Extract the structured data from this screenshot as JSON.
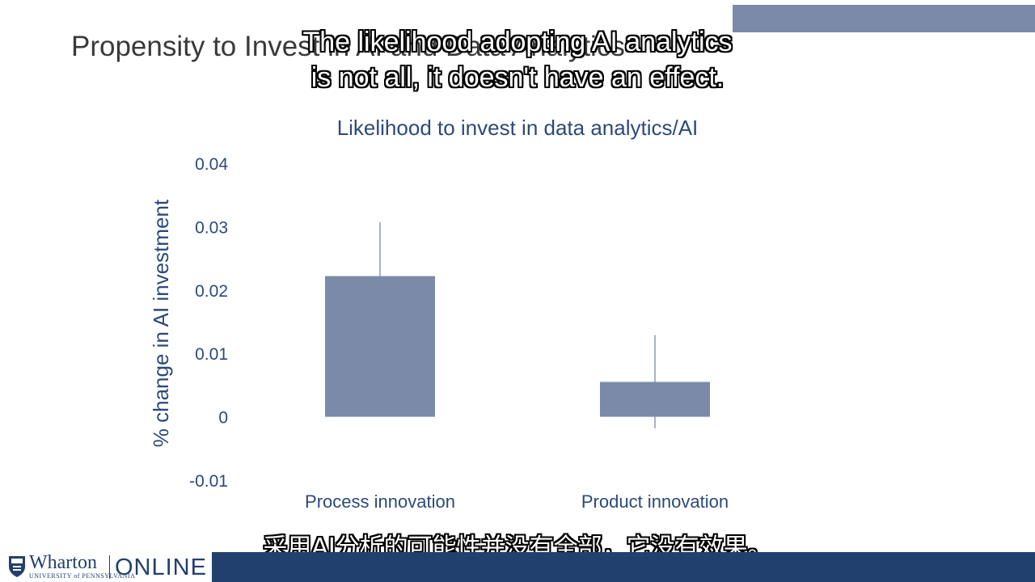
{
  "slide": {
    "title": "Propensity to Invest in AI and Data Analytics"
  },
  "captions": {
    "english_line1": "The likelihood adopting AI analytics",
    "english_line2": "is not all, it doesn't have an effect.",
    "chinese": "采用AI分析的可能性并没有全部，它没有效果。"
  },
  "branding": {
    "logo_name": "Wharton",
    "logo_subtitle": "UNIVERSITY of PENNSYLVANIA",
    "logo_suffix": "ONLINE"
  },
  "colors": {
    "bar": "#7a8aa8",
    "chart_title": "#2b4a7a",
    "axis_text": "#2b4a7a",
    "bottom_bar": "#22406e"
  },
  "chart_data": {
    "type": "bar",
    "title": "Likelihood to invest in data analytics/AI",
    "xlabel": "",
    "ylabel": "% change in AI investment",
    "categories": [
      "Process innovation",
      "Product innovation"
    ],
    "values": [
      0.0222,
      0.0055
    ],
    "error_low": [
      0.0137,
      -0.0018
    ],
    "error_high": [
      0.0307,
      0.0129
    ],
    "ylim": [
      -0.01,
      0.04
    ],
    "yticks": [
      -0.01,
      0,
      0.01,
      0.02,
      0.03,
      0.04
    ],
    "ytick_labels": [
      "-0.01",
      "0",
      "0.01",
      "0.02",
      "0.03",
      "0.04"
    ],
    "grid": false,
    "legend": "none"
  }
}
